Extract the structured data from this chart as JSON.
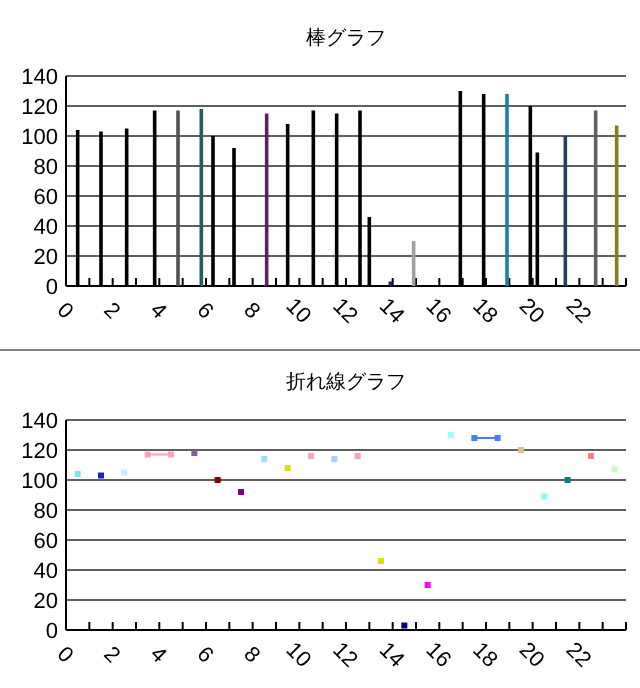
{
  "chart_data": [
    {
      "type": "bar",
      "title": "棒グラフ",
      "xlim": [
        0,
        24
      ],
      "xticks": [
        0,
        {
          "value": 1,
          "label": null
        },
        2,
        {
          "value": 3,
          "label": null
        },
        4,
        {
          "value": 5,
          "label": null
        },
        6,
        {
          "value": 7,
          "label": null
        },
        8,
        {
          "value": 9,
          "label": null
        },
        10,
        {
          "value": 11,
          "label": null
        },
        12,
        {
          "value": 13,
          "label": null
        },
        14,
        {
          "value": 15,
          "label": null
        },
        16,
        {
          "value": 17,
          "label": null
        },
        18,
        {
          "value": 19,
          "label": null
        },
        20,
        {
          "value": 21,
          "label": null
        },
        22,
        {
          "value": 23,
          "label": null
        },
        {
          "value": 24,
          "label": null
        }
      ],
      "ylim": [
        0,
        140
      ],
      "yticks": [
        0,
        20,
        40,
        60,
        80,
        100,
        120,
        140
      ],
      "grid": "y",
      "x": [
        0.5,
        1.5,
        2.6,
        3.8,
        4.8,
        5.8,
        6.3,
        7.2,
        8.6,
        9.5,
        10.6,
        11.6,
        12.6,
        13.0,
        13.9,
        14.9,
        16.9,
        17.9,
        18.9,
        19.9,
        20.2,
        21.4,
        22.7,
        23.6
      ],
      "series": [
        {
          "values": [
            104,
            103,
            105,
            117,
            117,
            118,
            100,
            92,
            115,
            108,
            117,
            115,
            117,
            46,
            3,
            30,
            130,
            128,
            128,
            120,
            89,
            100,
            117,
            107
          ],
          "colors": [
            "#000000",
            "#000000",
            "#000000",
            "#000000",
            "#505050",
            "#1f5f5f",
            "#000000",
            "#000000",
            "#602060",
            "#000000",
            "#000000",
            "#000000",
            "#000000",
            "#000000",
            "#202060",
            "#a0a0a0",
            "#000000",
            "#000000",
            "#2080a0",
            "#000000",
            "#000000",
            "#204060",
            "#606060",
            "#808020"
          ]
        }
      ]
    },
    {
      "type": "scatter",
      "title": "折れ線グラフ",
      "xlim": [
        0,
        24
      ],
      "xticks": [
        0,
        {
          "value": 1,
          "label": null
        },
        2,
        {
          "value": 3,
          "label": null
        },
        4,
        {
          "value": 5,
          "label": null
        },
        6,
        {
          "value": 7,
          "label": null
        },
        8,
        {
          "value": 9,
          "label": null
        },
        10,
        {
          "value": 11,
          "label": null
        },
        12,
        {
          "value": 13,
          "label": null
        },
        14,
        {
          "value": 15,
          "label": null
        },
        16,
        {
          "value": 17,
          "label": null
        },
        18,
        {
          "value": 19,
          "label": null
        },
        20,
        {
          "value": 21,
          "label": null
        },
        22,
        {
          "value": 23,
          "label": null
        },
        {
          "value": 24,
          "label": null
        }
      ],
      "ylim": [
        0,
        140
      ],
      "yticks": [
        0,
        20,
        40,
        60,
        80,
        100,
        120,
        140
      ],
      "grid": "y",
      "marker": "square",
      "x": [
        0.5,
        1.5,
        2.5,
        3.5,
        4.5,
        5.5,
        6.5,
        7.5,
        8.5,
        9.5,
        10.5,
        11.5,
        12.5,
        13.5,
        14.5,
        15.5,
        16.5,
        17.5,
        18.5,
        19.5,
        20.5,
        21.5,
        22.5,
        23.5
      ],
      "series": [
        {
          "values": [
            104,
            103,
            105,
            117,
            117,
            118,
            100,
            92,
            114,
            108,
            116,
            114,
            116,
            46,
            3,
            30,
            130,
            128,
            128,
            120,
            89,
            100,
            116,
            107
          ],
          "colors": [
            "#80e0ff",
            "#2020c0",
            "#c0f0ff",
            "#ffa0c0",
            "#ffa0c0",
            "#8060a0",
            "#800000",
            "#800080",
            "#a0e0ff",
            "#e0e000",
            "#ffa0c0",
            "#a0d0ff",
            "#ffa0c0",
            "#e0e000",
            "#000080",
            "#ff00ff",
            "#a0ffff",
            "#4080ff",
            "#4080ff",
            "#e0c080",
            "#80ffff",
            "#008080",
            "#ff8080",
            "#c0ffc0"
          ]
        },
        {
          "type": "line",
          "x": [
            3.5,
            4.5
          ],
          "values": [
            117,
            117
          ],
          "color": "#ffa0c0",
          "marker": "none"
        },
        {
          "type": "line",
          "x": [
            17.5,
            18.5
          ],
          "values": [
            128,
            128
          ],
          "color": "#4080ff",
          "marker": "none"
        }
      ]
    }
  ]
}
